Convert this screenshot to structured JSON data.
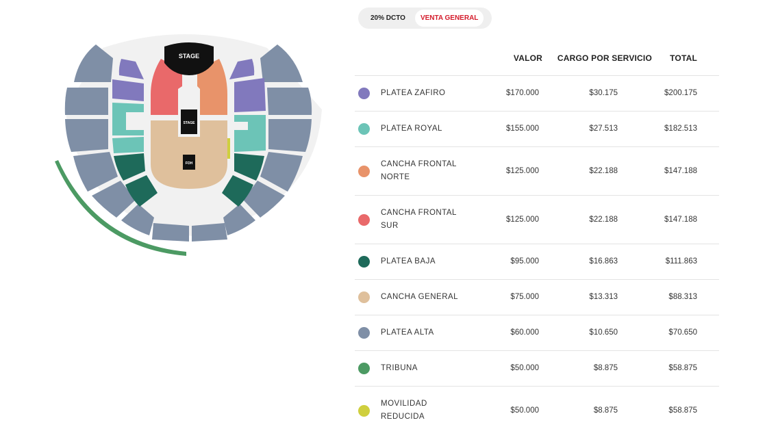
{
  "map": {
    "stage_label": "STAGE",
    "stage2_label": "STAGE",
    "foh_label": "FOH"
  },
  "tabs": [
    {
      "label": "20% DCTO",
      "active": false
    },
    {
      "label": "VENTA GENERAL",
      "active": true
    }
  ],
  "table": {
    "headers": {
      "valor": "VALOR",
      "cargo": "CARGO POR SERVICIO",
      "total": "TOTAL"
    },
    "rows": [
      {
        "zone": "PLATEA ZAFIRO",
        "color": "#8179bd",
        "valor": "$170.000",
        "cargo": "$30.175",
        "total": "$200.175"
      },
      {
        "zone": "PLATEA ROYAL",
        "color": "#6cc4b7",
        "valor": "$155.000",
        "cargo": "$27.513",
        "total": "$182.513"
      },
      {
        "zone": "CANCHA FRONTAL NORTE",
        "color": "#e8936a",
        "valor": "$125.000",
        "cargo": "$22.188",
        "total": "$147.188"
      },
      {
        "zone": "CANCHA FRONTAL SUR",
        "color": "#e9696a",
        "valor": "$125.000",
        "cargo": "$22.188",
        "total": "$147.188"
      },
      {
        "zone": "PLATEA BAJA",
        "color": "#1e6a5a",
        "valor": "$95.000",
        "cargo": "$16.863",
        "total": "$111.863"
      },
      {
        "zone": "CANCHA GENERAL",
        "color": "#dfc09c",
        "valor": "$75.000",
        "cargo": "$13.313",
        "total": "$88.313"
      },
      {
        "zone": "PLATEA ALTA",
        "color": "#7f8fa6",
        "valor": "$60.000",
        "cargo": "$10.650",
        "total": "$70.650"
      },
      {
        "zone": "TRIBUNA",
        "color": "#4c9a63",
        "valor": "$50.000",
        "cargo": "$8.875",
        "total": "$58.875"
      },
      {
        "zone": "MOVILIDAD REDUCIDA",
        "color": "#cfcf3e",
        "valor": "$50.000",
        "cargo": "$8.875",
        "total": "$58.875"
      }
    ]
  }
}
